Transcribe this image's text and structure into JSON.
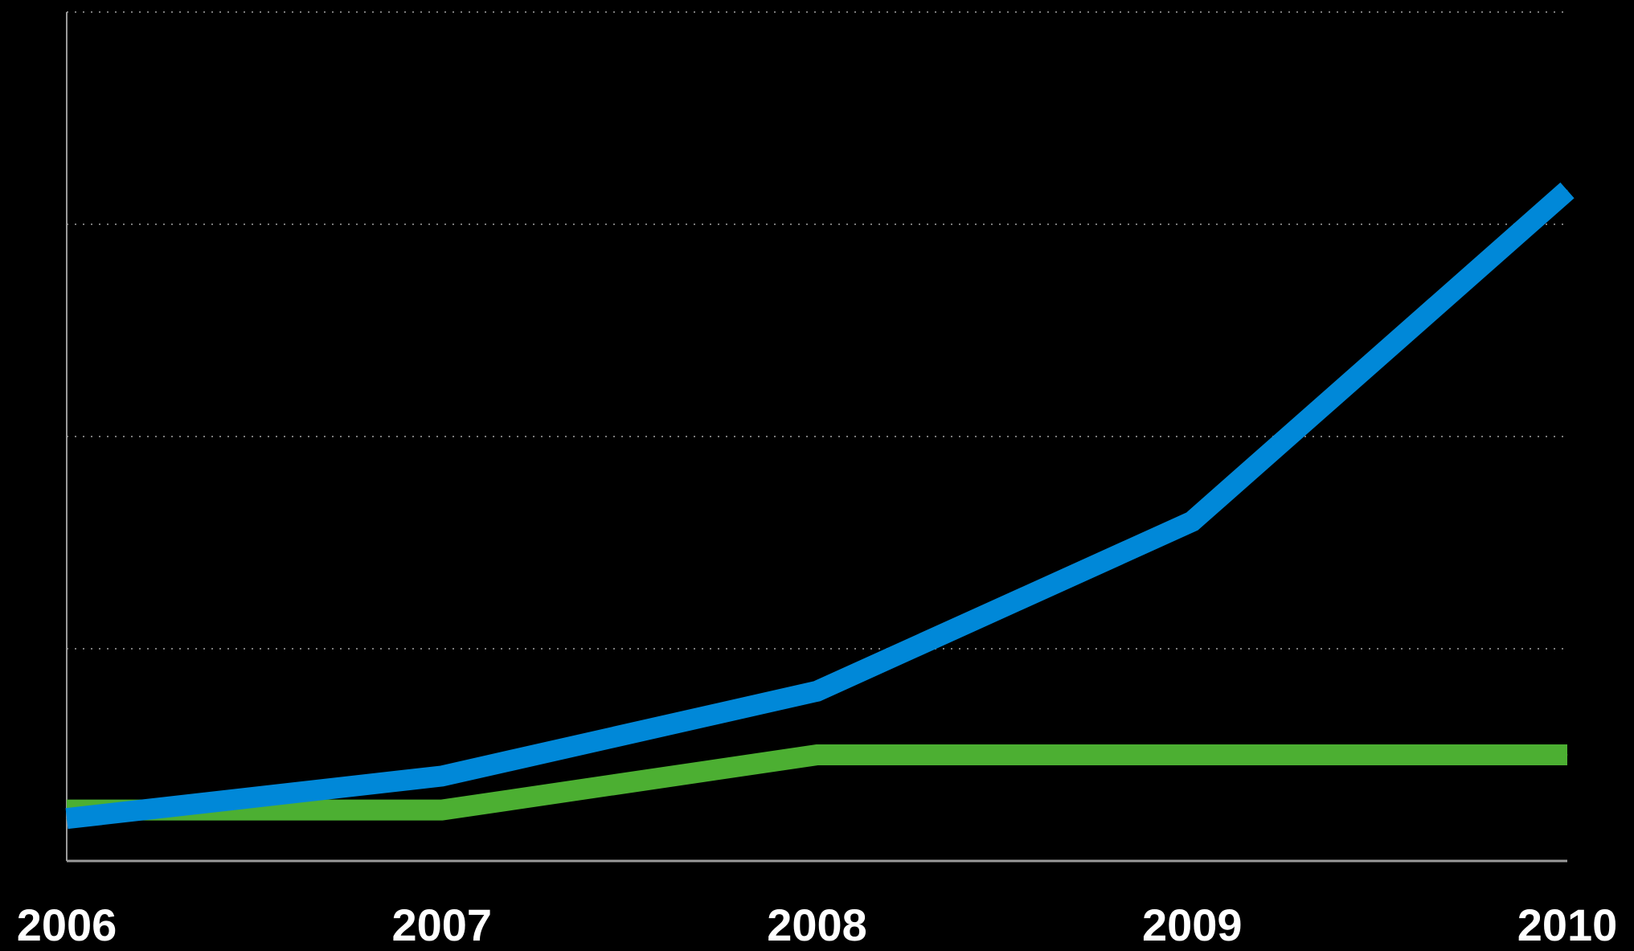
{
  "chart_data": {
    "type": "line",
    "title": "",
    "xlabel": "",
    "ylabel": "",
    "x": [
      "2006",
      "2007",
      "2008",
      "2009",
      "2010"
    ],
    "ylim": [
      0,
      100
    ],
    "y_gridlines": [
      25,
      50,
      75,
      100
    ],
    "grid": "horizontal dotted",
    "legend": "none",
    "series": [
      {
        "color": "#0088d8",
        "values": [
          5,
          10,
          20,
          40,
          79
        ]
      },
      {
        "color": "#4caf32",
        "values": [
          6,
          6,
          12.5,
          12.5,
          12.5
        ]
      }
    ],
    "colors": {
      "background": "#000000",
      "axis": "#9a9a9a",
      "grid": "#7a7a7a",
      "tick_text": "#ffffff"
    }
  }
}
